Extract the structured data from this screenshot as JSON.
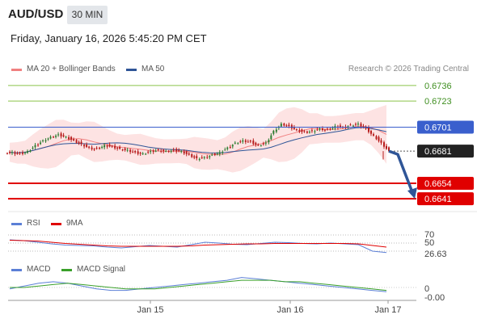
{
  "header": {
    "symbol": "AUD/USD",
    "timeframe": "30 MIN",
    "datetime": "Friday, January 16, 2026 5:45:20 PM CET"
  },
  "legend": {
    "ma20_label": "MA 20 + Bollinger Bands",
    "ma50_label": "MA 50",
    "credit": "Research © 2026 Trading Central",
    "rsi_label": "RSI",
    "rsi_ma_label": "9MA",
    "macd_label": "MACD",
    "macd_signal_label": "MACD Signal"
  },
  "colors": {
    "ma20": "#f08080",
    "ma50": "#2f5597",
    "resistance": "#8bc34a",
    "support": "#e00000",
    "pivot": "#3a5fcd",
    "current": "#222222",
    "rsi": "#5b7fd6",
    "rsi_ma": "#e00000",
    "macd": "#5b7fd6",
    "macd_signal": "#3aa02a",
    "candle_up": "#2e7d32",
    "candle_down": "#b71c1c",
    "band_fill": "#fde3e3"
  },
  "chart_data": [
    {
      "type": "candlestick",
      "title": "AUD/USD 30 MIN",
      "x_ticks": [
        "Jan 15",
        "Jan 16",
        "Jan 17"
      ],
      "ylim": [
        0.6633,
        0.6742
      ],
      "levels": [
        {
          "value": "0.6736",
          "kind": "resistance"
        },
        {
          "value": "0.6723",
          "kind": "resistance"
        },
        {
          "value": "0.6701",
          "kind": "pivot"
        },
        {
          "value": "0.6681",
          "kind": "current"
        },
        {
          "value": "0.6654",
          "kind": "support"
        },
        {
          "value": "0.6641",
          "kind": "support"
        }
      ],
      "forecast": {
        "from": 0.6681,
        "to": 0.6641,
        "direction": "down"
      },
      "close_series": [
        0.668,
        0.6679,
        0.6681,
        0.6686,
        0.669,
        0.6693,
        0.6695,
        0.6693,
        0.669,
        0.6687,
        0.6684,
        0.6683,
        0.6686,
        0.6685,
        0.6683,
        0.6682,
        0.668,
        0.6679,
        0.6681,
        0.6682,
        0.6681,
        0.6682,
        0.6681,
        0.6678,
        0.6675,
        0.6676,
        0.6678,
        0.668,
        0.6684,
        0.6688,
        0.669,
        0.6689,
        0.6686,
        0.6688,
        0.6698,
        0.6704,
        0.6702,
        0.6699,
        0.6697,
        0.6698,
        0.67,
        0.6699,
        0.6702,
        0.6701,
        0.6703,
        0.6704,
        0.67,
        0.6694,
        0.6688,
        0.6681
      ]
    },
    {
      "type": "line",
      "title": "RSI",
      "series": [
        {
          "name": "RSI",
          "values": [
            58,
            56,
            52,
            48,
            45,
            44,
            43,
            40,
            38,
            41,
            44,
            42,
            40,
            46,
            52,
            50,
            47,
            46,
            49,
            52,
            51,
            49,
            48,
            50,
            48,
            46,
            30,
            26.63
          ]
        },
        {
          "name": "9MA",
          "values": [
            57,
            56,
            55,
            52,
            49,
            47,
            45,
            43,
            42,
            42,
            42,
            42,
            42,
            43,
            45,
            46,
            47,
            48,
            48,
            49,
            49,
            49,
            49,
            49,
            49,
            48,
            44,
            40
          ]
        }
      ],
      "ylim": [
        0,
        100
      ],
      "y_ticks": [
        "70",
        "50"
      ],
      "last_value": "26.63"
    },
    {
      "type": "line",
      "title": "MACD",
      "series": [
        {
          "name": "MACD",
          "values": [
            -0.0001,
            0.0001,
            0.0003,
            0.0004,
            0.0003,
            0.0001,
            -0.0001,
            -0.0002,
            -0.0002,
            -0.0001,
            0.0,
            0.0001,
            0.0002,
            0.0003,
            0.0004,
            0.0005,
            0.0007,
            0.0006,
            0.0005,
            0.0004,
            0.0003,
            0.0002,
            0.0001,
            0.0,
            -0.0001,
            -0.0002,
            -0.0003
          ]
        },
        {
          "name": "MACD Signal",
          "values": [
            0.0,
            0.0,
            0.0001,
            0.0002,
            0.0003,
            0.0002,
            0.0001,
            0.0,
            -0.0001,
            -0.0001,
            -0.0001,
            0.0,
            0.0001,
            0.0002,
            0.0003,
            0.0004,
            0.0005,
            0.0005,
            0.0005,
            0.0004,
            0.0004,
            0.0003,
            0.0002,
            0.0001,
            0.0,
            -0.0001,
            -0.0002
          ]
        }
      ],
      "y_ticks": [
        "0"
      ],
      "last_value": "-0.00"
    }
  ]
}
